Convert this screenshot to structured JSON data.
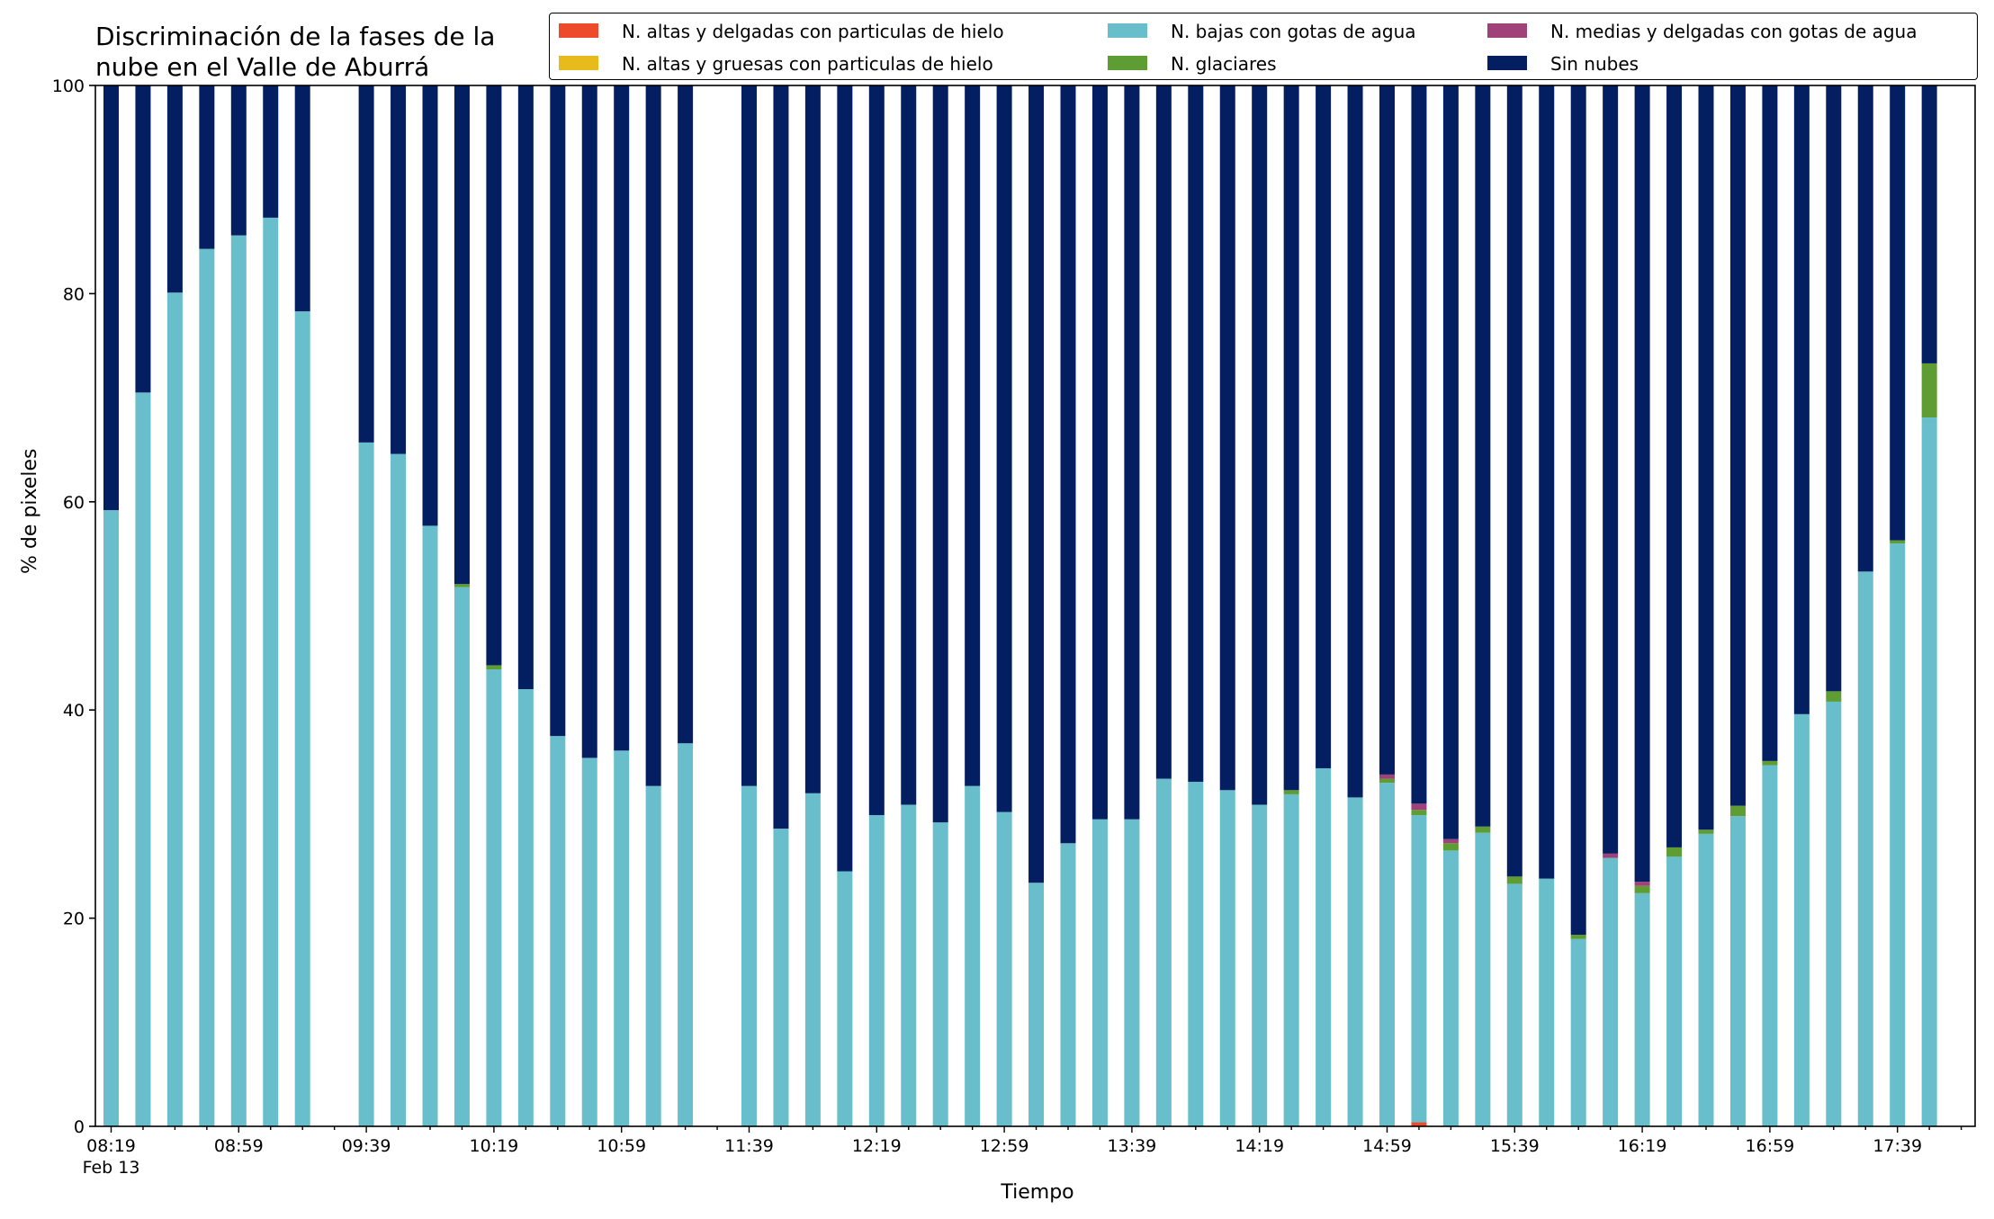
{
  "title_lines": [
    "Discriminación de la fases de la",
    "nube en el Valle de Aburrá"
  ],
  "colors": {
    "altas_delgadas": "#ee4a2c",
    "altas_gruesas": "#e7bb1b",
    "bajas_agua": "#68bfcb",
    "glaciares": "#5e9d33",
    "medias_delgadas": "#a1417a",
    "sin_nubes": "#041f61"
  },
  "chart_data": {
    "type": "bar",
    "stacked": true,
    "title": "Discriminación de la fases de la nube en el Valle de Aburrá",
    "xlabel": "Tiempo",
    "ylabel": "% de pixeles",
    "ylim": [
      0,
      100
    ],
    "yticks": [
      0,
      20,
      40,
      60,
      80,
      100
    ],
    "grid": false,
    "legend_position": "top",
    "x_tick_labels": [
      "08:19",
      "08:59",
      "09:39",
      "10:19",
      "10:59",
      "11:39",
      "12:19",
      "12:59",
      "13:39",
      "14:19",
      "14:59",
      "15:39",
      "16:19",
      "16:59",
      "17:39"
    ],
    "x_sublabel": "Feb 13",
    "x": [
      "08:19",
      "08:29",
      "08:39",
      "08:49",
      "08:59",
      "09:09",
      "09:19",
      "09:29",
      "09:39",
      "09:49",
      "09:59",
      "10:09",
      "10:19",
      "10:29",
      "10:39",
      "10:49",
      "10:59",
      "11:09",
      "11:19",
      "11:29",
      "11:39",
      "11:49",
      "11:59",
      "12:09",
      "12:19",
      "12:29",
      "12:39",
      "12:49",
      "12:59",
      "13:09",
      "13:19",
      "13:29",
      "13:39",
      "13:49",
      "13:59",
      "14:09",
      "14:19",
      "14:29",
      "14:39",
      "14:49",
      "14:59",
      "15:09",
      "15:19",
      "15:29",
      "15:39",
      "15:49",
      "15:59",
      "16:09",
      "16:19",
      "16:29",
      "16:39",
      "16:49",
      "16:59",
      "17:09",
      "17:19",
      "17:29",
      "17:39",
      "17:49"
    ],
    "series": [
      {
        "name": "N. altas y delgadas con particulas de hielo",
        "color": "#ee4a2c",
        "values": [
          0,
          0,
          0,
          0,
          0,
          0,
          0,
          null,
          0,
          0,
          0,
          0,
          0,
          0,
          0,
          0,
          0,
          0,
          0,
          null,
          0,
          0,
          0,
          0,
          0,
          0,
          0,
          0,
          0,
          0,
          0,
          0,
          0,
          0,
          0,
          0,
          0,
          0,
          0,
          0,
          0,
          0.4,
          0,
          0,
          0,
          0,
          0,
          0,
          0,
          0,
          0,
          0,
          0,
          0,
          0,
          0,
          0,
          0
        ]
      },
      {
        "name": "N. altas y gruesas con particulas de hielo",
        "color": "#e7bb1b",
        "values": [
          0,
          0,
          0,
          0,
          0,
          0,
          0,
          null,
          0,
          0,
          0,
          0,
          0,
          0,
          0,
          0,
          0,
          0,
          0,
          null,
          0,
          0,
          0,
          0,
          0,
          0,
          0,
          0,
          0,
          0,
          0,
          0,
          0,
          0,
          0,
          0,
          0,
          0,
          0,
          0,
          0,
          0,
          0,
          0,
          0,
          0,
          0,
          0,
          0,
          0,
          0,
          0,
          0,
          0,
          0,
          0,
          0,
          0
        ]
      },
      {
        "name": "N. bajas con gotas de agua",
        "color": "#68bfcb",
        "values": [
          59.2,
          70.5,
          80.1,
          84.3,
          85.6,
          87.3,
          78.3,
          null,
          65.7,
          64.6,
          57.7,
          51.8,
          43.9,
          42.0,
          37.5,
          35.4,
          36.1,
          32.7,
          36.8,
          null,
          32.7,
          28.6,
          32.0,
          24.5,
          29.9,
          30.9,
          29.2,
          32.7,
          30.2,
          23.4,
          27.2,
          29.5,
          29.5,
          33.4,
          33.1,
          32.3,
          30.9,
          31.9,
          34.4,
          31.6,
          33.0,
          29.5,
          26.5,
          28.2,
          23.3,
          23.8,
          18.0,
          25.8,
          22.4,
          25.9,
          28.1,
          29.8,
          34.7,
          39.6,
          40.8,
          53.3,
          56.0,
          68.1
        ]
      },
      {
        "name": "N. glaciares",
        "color": "#5e9d33",
        "values": [
          0,
          0,
          0,
          0,
          0,
          0,
          0,
          null,
          0,
          0,
          0,
          0.3,
          0.4,
          0,
          0,
          0,
          0,
          0,
          0,
          null,
          0,
          0,
          0,
          0,
          0,
          0,
          0,
          0,
          0,
          0,
          0,
          0,
          0,
          0,
          0,
          0,
          0,
          0.4,
          0,
          0,
          0.4,
          0.5,
          0.7,
          0.6,
          0.7,
          0,
          0.4,
          0,
          0.7,
          0.9,
          0.4,
          1.0,
          0.4,
          0,
          1.0,
          0,
          0.3,
          5.2
        ]
      },
      {
        "name": "N. medias y delgadas con gotas de agua",
        "color": "#a1417a",
        "values": [
          0,
          0,
          0,
          0,
          0,
          0,
          0,
          null,
          0,
          0,
          0,
          0,
          0,
          0,
          0,
          0,
          0,
          0,
          0,
          null,
          0,
          0,
          0,
          0,
          0,
          0,
          0,
          0,
          0,
          0,
          0,
          0,
          0,
          0,
          0,
          0,
          0,
          0,
          0,
          0,
          0.4,
          0.6,
          0.4,
          0,
          0,
          0,
          0,
          0.4,
          0.4,
          0,
          0,
          0,
          0,
          0,
          0,
          0,
          0,
          0
        ]
      },
      {
        "name": "Sin nubes",
        "color": "#041f61",
        "values": [
          40.8,
          29.5,
          19.9,
          15.7,
          14.4,
          12.7,
          21.7,
          null,
          34.3,
          35.4,
          42.3,
          47.9,
          55.7,
          58.0,
          62.5,
          64.6,
          63.9,
          67.3,
          63.2,
          null,
          67.3,
          71.4,
          68.0,
          75.5,
          70.1,
          69.1,
          70.8,
          67.3,
          69.8,
          76.6,
          72.8,
          70.5,
          70.5,
          66.6,
          66.9,
          67.7,
          69.1,
          67.7,
          65.6,
          68.4,
          66.2,
          69.0,
          72.4,
          71.2,
          76.0,
          76.2,
          81.6,
          73.8,
          76.5,
          73.2,
          71.5,
          69.2,
          64.9,
          60.4,
          58.2,
          46.7,
          43.7,
          26.7
        ]
      }
    ]
  }
}
